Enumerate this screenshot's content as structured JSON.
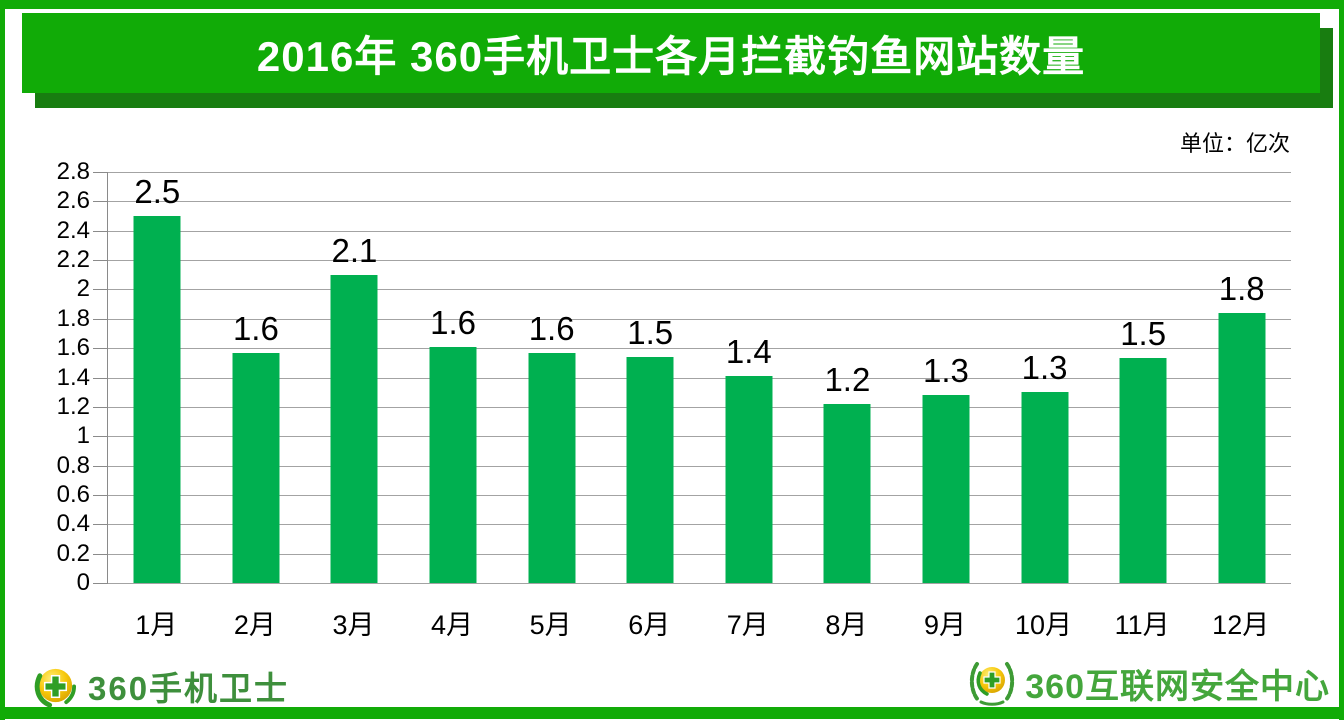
{
  "header": {
    "title": "2016年 360手机卫士各月拦截钓鱼网站数量",
    "banner_color": "#11ab07",
    "banner_shadow_color": "#187d10",
    "title_text_color": "#ffffff"
  },
  "chart_data": {
    "type": "bar",
    "title": "2016年 360手机卫士各月拦截钓鱼网站数量",
    "unit": "单位：亿次",
    "categories": [
      "1月",
      "2月",
      "3月",
      "4月",
      "5月",
      "6月",
      "7月",
      "8月",
      "9月",
      "10月",
      "11月",
      "12月"
    ],
    "values": [
      2.5,
      1.6,
      2.1,
      1.6,
      1.6,
      1.5,
      1.4,
      1.2,
      1.3,
      1.3,
      1.5,
      1.8
    ],
    "value_labels": [
      "2.5",
      "1.6",
      "2.1",
      "1.6",
      "1.6",
      "1.5",
      "1.4",
      "1.2",
      "1.3",
      "1.3",
      "1.5",
      "1.8"
    ],
    "bar_heights": [
      2.5,
      1.57,
      2.1,
      1.61,
      1.57,
      1.54,
      1.41,
      1.22,
      1.28,
      1.3,
      1.53,
      1.84
    ],
    "xlabel": "",
    "ylabel": "",
    "ylim": [
      0,
      2.8
    ],
    "ytick_step": 0.2,
    "yticks": [
      "2.8",
      "2.6",
      "2.4",
      "2.2",
      "2",
      "1.8",
      "1.6",
      "1.4",
      "1.2",
      "1",
      "0.8",
      "0.6",
      "0.4",
      "0.2",
      "0"
    ],
    "bar_color": "#00b050",
    "gridline_color": "#a3a3a3",
    "grid": true,
    "legend": "none"
  },
  "footer": {
    "left_logo": {
      "icon": "360-mobile-guard-ball-icon",
      "text": "360手机卫士",
      "text_color": "#3e8f3c"
    },
    "right_logo": {
      "icon": "360-security-center-wreath-icon",
      "text": "360互联网安全中心",
      "text_color": "#44a63c"
    }
  }
}
